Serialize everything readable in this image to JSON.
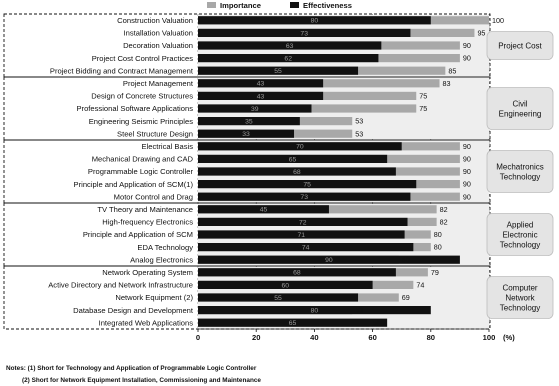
{
  "chart_data": {
    "type": "bar",
    "orientation": "horizontal",
    "legend": {
      "placement": "top",
      "importance_label": "Importance",
      "effectiveness_label": "Effectiveness"
    },
    "colors": {
      "importance": "#a8a8a8",
      "effectiveness": "#111111",
      "group_band": "#eeeeee",
      "category_box": "#e4e4e4"
    },
    "xlim": [
      0,
      100
    ],
    "x_ticks": [
      "0",
      "20",
      "40",
      "60",
      "80",
      "100"
    ],
    "x_unit_label": "(%)",
    "groups": [
      {
        "category": "Project Cost",
        "items": [
          {
            "label": "Construction Valuation",
            "importance": 100,
            "effectiveness": 80
          },
          {
            "label": "Installation Valuation",
            "importance": 95,
            "effectiveness": 73
          },
          {
            "label": "Decoration Valuation",
            "importance": 90,
            "effectiveness": 63
          },
          {
            "label": "Project Cost Control Practices",
            "importance": 90,
            "effectiveness": 62
          },
          {
            "label": "Project Bidding and Contract Management",
            "importance": 85,
            "effectiveness": 55
          }
        ]
      },
      {
        "category": "Civil Engineering",
        "items": [
          {
            "label": "Project Management",
            "importance": 83,
            "effectiveness": 43
          },
          {
            "label": "Design of Concrete Structures",
            "importance": 75,
            "effectiveness": 43
          },
          {
            "label": "Professional Software Applications",
            "importance": 75,
            "effectiveness": 39
          },
          {
            "label": "Engineering Seismic Principles",
            "importance": 53,
            "effectiveness": 35
          },
          {
            "label": "Steel Structure Design",
            "importance": 53,
            "effectiveness": 33
          }
        ]
      },
      {
        "category": "Mechatronics Technology",
        "items": [
          {
            "label": "Electrical Basis",
            "importance": 90,
            "effectiveness": 70
          },
          {
            "label": "Mechanical Drawing and CAD",
            "importance": 90,
            "effectiveness": 65
          },
          {
            "label": "Programmable Logic Controller",
            "importance": 90,
            "effectiveness": 68
          },
          {
            "label": "Principle and Application of SCM(1)",
            "importance": 90,
            "effectiveness": 75
          },
          {
            "label": "Motor Control and Drag",
            "importance": 90,
            "effectiveness": 73
          }
        ]
      },
      {
        "category": "Applied Electronic Technology",
        "items": [
          {
            "label": "TV Theory and Maintenance",
            "importance": 82,
            "effectiveness": 45
          },
          {
            "label": "High-frequency Electronics",
            "importance": 82,
            "effectiveness": 72
          },
          {
            "label": "Principle and Application of SCM",
            "importance": 80,
            "effectiveness": 71
          },
          {
            "label": "EDA Technology",
            "importance": 80,
            "effectiveness": 74
          },
          {
            "label": "Analog Electronics",
            "importance": 69,
            "effectiveness": 90
          }
        ]
      },
      {
        "category": "Computer Network Technology",
        "items": [
          {
            "label": "Network Operating System",
            "importance": 79,
            "effectiveness": 68
          },
          {
            "label": "Active Directory and Network Infrastructure",
            "importance": 74,
            "effectiveness": 60
          },
          {
            "label": "Network Equipment (2)",
            "importance": 69,
            "effectiveness": 55
          },
          {
            "label": "Database Design and Development",
            "importance": 53,
            "effectiveness": 80
          },
          {
            "label": "Integrated Web Applications",
            "importance": 59,
            "effectiveness": 65
          }
        ]
      }
    ],
    "notes": [
      "Notes: (1) Short for Technology and Application of Programmable Logic Controller",
      "(2) Short for Network Equipment Installation, Commissioning and Maintenance"
    ]
  }
}
